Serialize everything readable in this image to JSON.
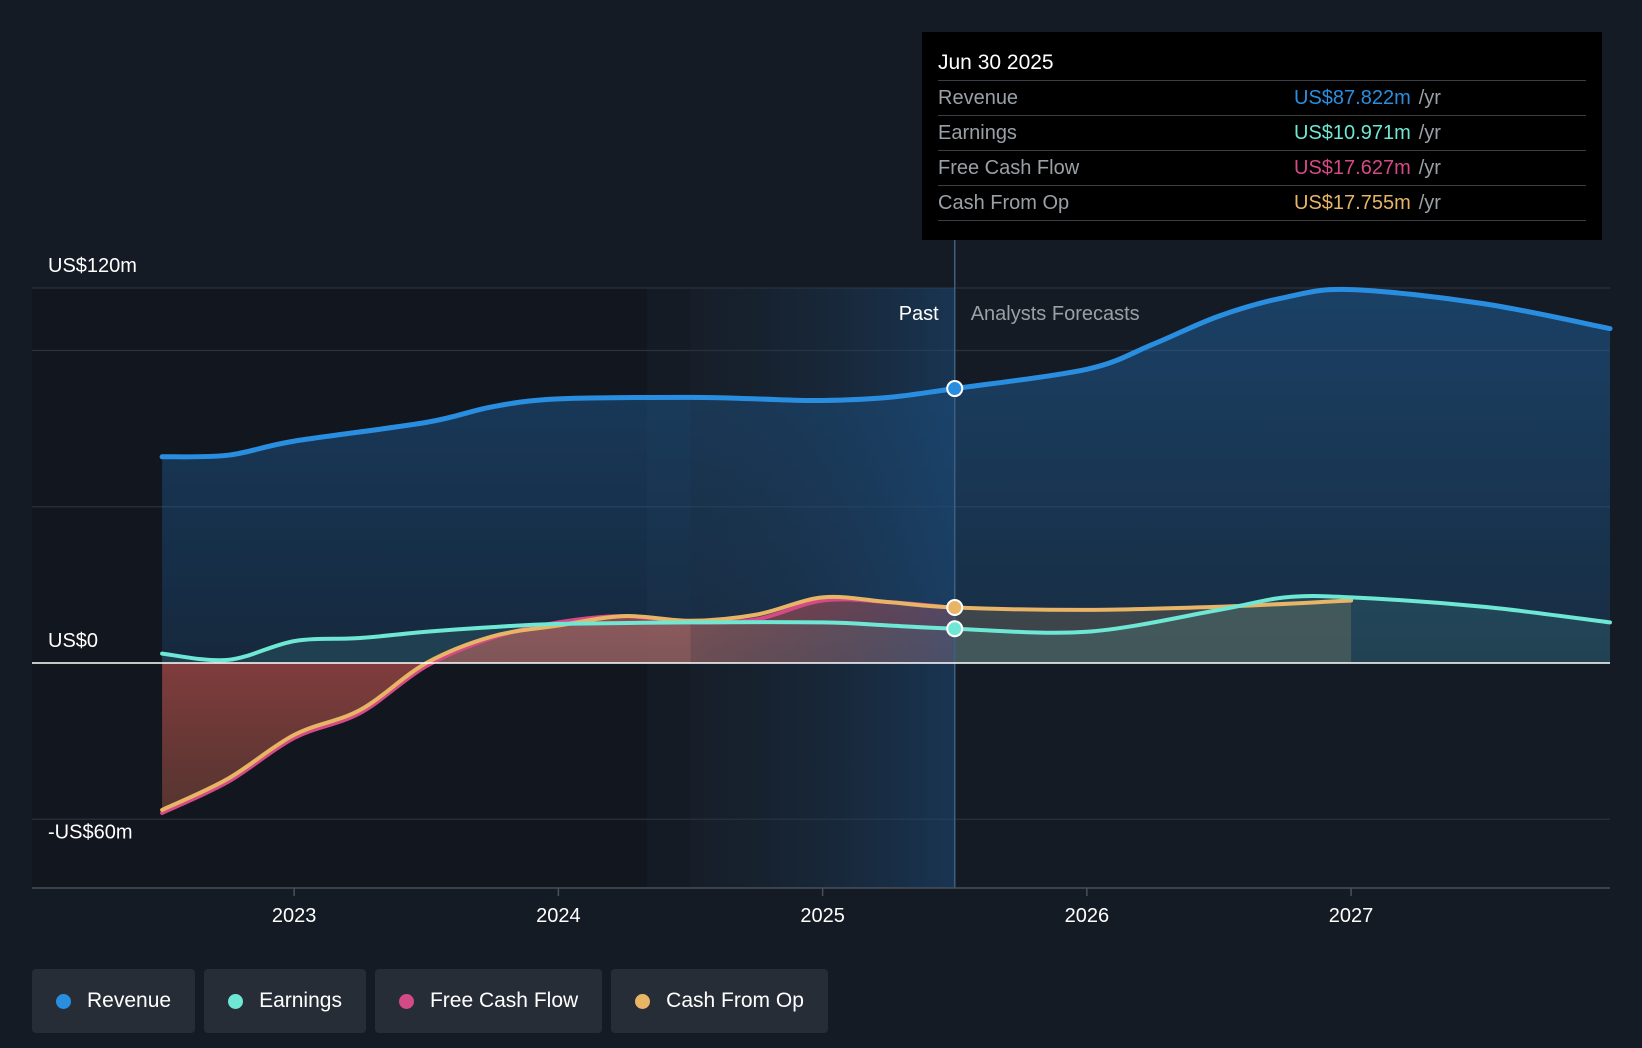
{
  "chart_data": {
    "type": "line",
    "title": "",
    "xlabel": "",
    "ylabel": "",
    "y_tick_labels": [
      "US$120m",
      "US$0",
      "-US$60m"
    ],
    "ylim": [
      -72,
      120
    ],
    "x_range": [
      2022.25,
      2027.98
    ],
    "x_ticks": [
      "2023",
      "2024",
      "2025",
      "2026",
      "2027"
    ],
    "x_tick_values": [
      2023,
      2024,
      2025,
      2026,
      2027
    ],
    "past_label": "Past",
    "forecast_label": "Analysts Forecasts",
    "past_shade_start": 2024.5,
    "divider_x": 2025.5,
    "series": [
      {
        "name": "Revenue",
        "color": "#2a8ee0",
        "points": [
          [
            2022.5,
            66
          ],
          [
            2022.75,
            66.5
          ],
          [
            2023,
            71
          ],
          [
            2023.5,
            77
          ],
          [
            2023.75,
            82
          ],
          [
            2024,
            84.5
          ],
          [
            2024.5,
            85
          ],
          [
            2024.75,
            84.5
          ],
          [
            2025,
            84
          ],
          [
            2025.25,
            85
          ],
          [
            2025.5,
            87.822
          ],
          [
            2026,
            94
          ],
          [
            2026.25,
            102
          ],
          [
            2026.5,
            111
          ],
          [
            2026.75,
            117
          ],
          [
            2027,
            119.5
          ],
          [
            2027.5,
            115
          ],
          [
            2027.98,
            107
          ]
        ]
      },
      {
        "name": "Earnings",
        "color": "#6ee7d4",
        "points": [
          [
            2022.5,
            3
          ],
          [
            2022.75,
            1
          ],
          [
            2023,
            7
          ],
          [
            2023.25,
            8
          ],
          [
            2023.5,
            10
          ],
          [
            2023.75,
            11.5
          ],
          [
            2024,
            12.5
          ],
          [
            2024.5,
            13
          ],
          [
            2025,
            13
          ],
          [
            2025.25,
            12
          ],
          [
            2025.5,
            10.971
          ],
          [
            2026,
            10
          ],
          [
            2026.5,
            17
          ],
          [
            2026.75,
            21
          ],
          [
            2027,
            21
          ],
          [
            2027.5,
            18
          ],
          [
            2027.98,
            13
          ]
        ]
      },
      {
        "name": "Free Cash Flow",
        "color": "#d44a86",
        "points": [
          [
            2022.5,
            -48
          ],
          [
            2022.75,
            -38
          ],
          [
            2023,
            -24
          ],
          [
            2023.25,
            -16
          ],
          [
            2023.5,
            -1
          ],
          [
            2023.75,
            8
          ],
          [
            2024,
            13
          ],
          [
            2024.25,
            15
          ],
          [
            2024.5,
            13
          ],
          [
            2024.75,
            14
          ],
          [
            2025,
            20
          ],
          [
            2025.25,
            19.5
          ],
          [
            2025.5,
            17.627
          ]
        ]
      },
      {
        "name": "Cash From Op",
        "color": "#e8b466",
        "points": [
          [
            2022.5,
            -47
          ],
          [
            2022.75,
            -37
          ],
          [
            2023,
            -23
          ],
          [
            2023.25,
            -15
          ],
          [
            2023.5,
            0
          ],
          [
            2023.75,
            8.5
          ],
          [
            2024,
            12
          ],
          [
            2024.25,
            15
          ],
          [
            2024.5,
            13.5
          ],
          [
            2024.75,
            15.5
          ],
          [
            2025,
            21
          ],
          [
            2025.25,
            19.5
          ],
          [
            2025.5,
            17.755
          ],
          [
            2026,
            17
          ],
          [
            2026.5,
            18
          ],
          [
            2027,
            20
          ]
        ]
      }
    ],
    "tooltip": {
      "date": "Jun 30 2025",
      "rows": [
        {
          "name": "Revenue",
          "value": "US$87.822m",
          "unit": "/yr",
          "color": "#2a8ee0"
        },
        {
          "name": "Earnings",
          "value": "US$10.971m",
          "unit": "/yr",
          "color": "#6ee7d4"
        },
        {
          "name": "Free Cash Flow",
          "value": "US$17.627m",
          "unit": "/yr",
          "color": "#d44a86"
        },
        {
          "name": "Cash From Op",
          "value": "US$17.755m",
          "unit": "/yr",
          "color": "#e8b466"
        }
      ]
    }
  },
  "legend": {
    "items": [
      {
        "label": "Revenue",
        "color": "#2a8ee0"
      },
      {
        "label": "Earnings",
        "color": "#6ee7d4"
      },
      {
        "label": "Free Cash Flow",
        "color": "#d44a86"
      },
      {
        "label": "Cash From Op",
        "color": "#e8b466"
      }
    ]
  }
}
